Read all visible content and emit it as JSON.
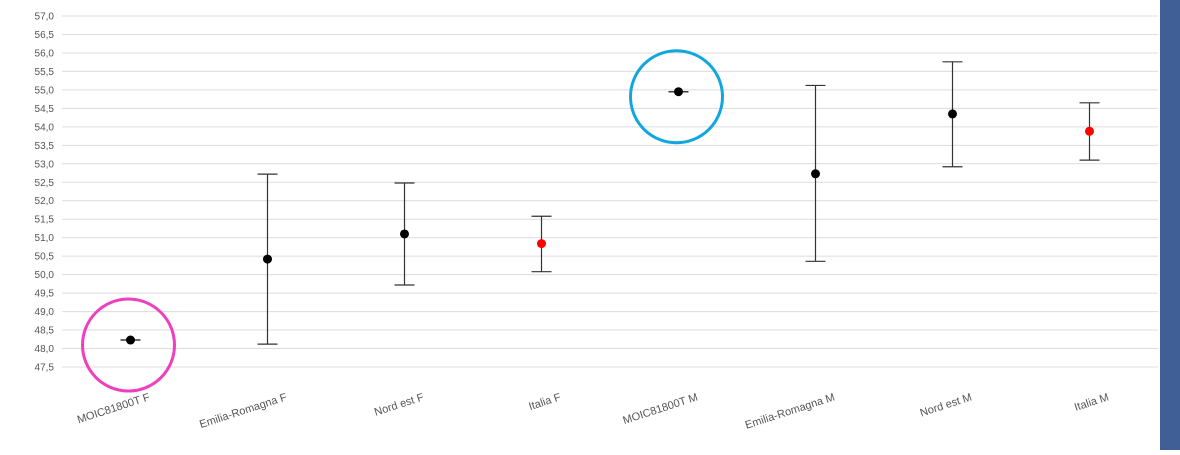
{
  "chart_data": {
    "type": "errorbar",
    "title": "",
    "xlabel": "",
    "ylabel": "",
    "ylim": [
      47.5,
      57.0
    ],
    "y_tick_step": 0.5,
    "grid": true,
    "categories": [
      "MOIC81800T F",
      "Emilia-Romagna F",
      "Nord est F",
      "Italia F",
      "MOIC81800T M",
      "Emilia-Romagna M",
      "Nord est M",
      "Italia M"
    ],
    "points": [
      {
        "value": 48.23,
        "low": 48.23,
        "high": 48.23,
        "color": "#000000"
      },
      {
        "value": 50.42,
        "low": 48.12,
        "high": 52.72,
        "color": "#000000"
      },
      {
        "value": 51.1,
        "low": 49.72,
        "high": 52.48,
        "color": "#000000"
      },
      {
        "value": 50.84,
        "low": 50.08,
        "high": 51.58,
        "color": "#ff0000"
      },
      {
        "value": 54.95,
        "low": 54.95,
        "high": 54.95,
        "color": "#000000"
      },
      {
        "value": 52.73,
        "low": 50.36,
        "high": 55.12,
        "color": "#000000"
      },
      {
        "value": 54.35,
        "low": 52.92,
        "high": 55.76,
        "color": "#000000"
      },
      {
        "value": 53.88,
        "low": 53.1,
        "high": 54.65,
        "color": "#ff0000"
      }
    ],
    "highlights": [
      {
        "category_index": 0,
        "color": "#ee3fbf"
      },
      {
        "category_index": 4,
        "color": "#11a6e0"
      }
    ],
    "decimal_separator": ",",
    "colors": {
      "grid": "#dcdcdc",
      "axis_text": "#555555",
      "whisker": "#333333",
      "side_panel": "#3f5f96"
    }
  }
}
